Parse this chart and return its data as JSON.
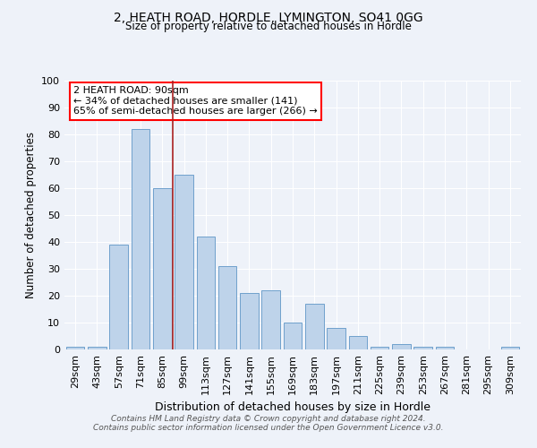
{
  "title1": "2, HEATH ROAD, HORDLE, LYMINGTON, SO41 0GG",
  "title2": "Size of property relative to detached houses in Hordle",
  "xlabel": "Distribution of detached houses by size in Hordle",
  "ylabel": "Number of detached properties",
  "footnote1": "Contains HM Land Registry data © Crown copyright and database right 2024.",
  "footnote2": "Contains public sector information licensed under the Open Government Licence v3.0.",
  "categories": [
    "29sqm",
    "43sqm",
    "57sqm",
    "71sqm",
    "85sqm",
    "99sqm",
    "113sqm",
    "127sqm",
    "141sqm",
    "155sqm",
    "169sqm",
    "183sqm",
    "197sqm",
    "211sqm",
    "225sqm",
    "239sqm",
    "253sqm",
    "267sqm",
    "281sqm",
    "295sqm",
    "309sqm"
  ],
  "values": [
    1,
    1,
    39,
    82,
    60,
    65,
    42,
    31,
    21,
    22,
    10,
    17,
    8,
    5,
    1,
    2,
    1,
    1,
    0,
    0,
    1
  ],
  "bar_color": "#bed3ea",
  "bar_edge_color": "#6fa0cc",
  "vline_x_index": 4.5,
  "vline_color": "#aa2222",
  "annotation_text": "2 HEATH ROAD: 90sqm\n← 34% of detached houses are smaller (141)\n65% of semi-detached houses are larger (266) →",
  "ylim": [
    0,
    100
  ],
  "background_color": "#eef2f9",
  "plot_bg_color": "#eef2f9"
}
